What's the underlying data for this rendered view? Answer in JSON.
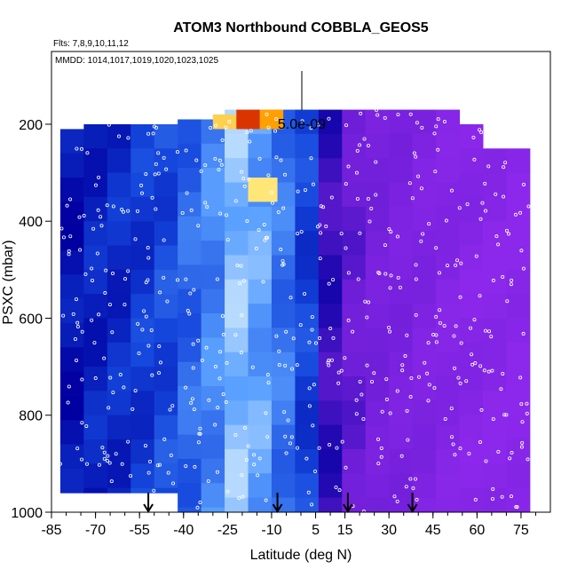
{
  "chart_data": {
    "type": "heatmap",
    "title": "ATOM3 Northbound COBBLA_GEOS5",
    "flights_label": "Flts: 7,8,9,10,11,12",
    "dates_label": "MMDD: 1014,1017,1019,1020,1023,1025",
    "scale_label": "5.0e-09",
    "xlabel": "Latitude (deg N)",
    "ylabel": "PSXC (mbar)",
    "xlim": [
      -85,
      85
    ],
    "ylim": [
      1000,
      50
    ],
    "x_ticks": [
      "-85",
      "-70",
      "-55",
      "-40",
      "-25",
      "-10",
      "5",
      "15",
      "30",
      "45",
      "60",
      "75"
    ],
    "y_ticks": [
      "200",
      "400",
      "600",
      "800",
      "1000"
    ],
    "colors": {
      "deep_blue": "#0000aa",
      "blue": "#1b4bd6",
      "light_blue": "#7fb2ff",
      "purple": "#8a2be2",
      "yellow": "#ffcc00",
      "red": "#cc0000"
    },
    "arrow_latitudes": [
      -52,
      -8,
      16,
      38
    ],
    "grid": [
      {
        "lat": -78,
        "top": 210,
        "bottom": 960,
        "value": 0.05
      },
      {
        "lat": -70,
        "top": 200,
        "bottom": 960,
        "value": 0.1
      },
      {
        "lat": -62,
        "top": 200,
        "bottom": 960,
        "value": 0.12
      },
      {
        "lat": -54,
        "top": 200,
        "bottom": 960,
        "value": 0.16
      },
      {
        "lat": -46,
        "top": 200,
        "bottom": 960,
        "value": 0.2
      },
      {
        "lat": -38,
        "top": 190,
        "bottom": 1000,
        "value": 0.27
      },
      {
        "lat": -30,
        "top": 190,
        "bottom": 1000,
        "value": 0.34
      },
      {
        "lat": -22,
        "top": 170,
        "bottom": 1000,
        "value": 0.46
      },
      {
        "lat": -14,
        "top": 170,
        "bottom": 1000,
        "value": 0.4
      },
      {
        "lat": -6,
        "top": 170,
        "bottom": 1000,
        "value": 0.3
      },
      {
        "lat": 2,
        "top": 170,
        "bottom": 1000,
        "value": 0.18
      },
      {
        "lat": 10,
        "top": 170,
        "bottom": 1000,
        "value": -0.1
      },
      {
        "lat": 18,
        "top": 170,
        "bottom": 1000,
        "value": -0.2
      },
      {
        "lat": 26,
        "top": 170,
        "bottom": 1000,
        "value": -0.28
      },
      {
        "lat": 34,
        "top": 170,
        "bottom": 1000,
        "value": -0.32
      },
      {
        "lat": 42,
        "top": 170,
        "bottom": 1000,
        "value": -0.36
      },
      {
        "lat": 50,
        "top": 170,
        "bottom": 1000,
        "value": -0.4
      },
      {
        "lat": 58,
        "top": 200,
        "bottom": 1000,
        "value": -0.44
      },
      {
        "lat": 66,
        "top": 250,
        "bottom": 1000,
        "value": -0.46
      },
      {
        "lat": 74,
        "top": 250,
        "bottom": 1000,
        "value": -0.48
      }
    ],
    "upper_highlights": [
      {
        "lat0": -30,
        "lat1": -22,
        "p0": 180,
        "p1": 210,
        "value": 0.75
      },
      {
        "lat0": -22,
        "lat1": -14,
        "p0": 170,
        "p1": 210,
        "value": 0.95
      },
      {
        "lat0": -14,
        "lat1": -6,
        "p0": 170,
        "p1": 210,
        "value": 0.85
      },
      {
        "lat0": -18,
        "lat1": -8,
        "p0": 310,
        "p1": 360,
        "value": 0.7
      }
    ]
  }
}
